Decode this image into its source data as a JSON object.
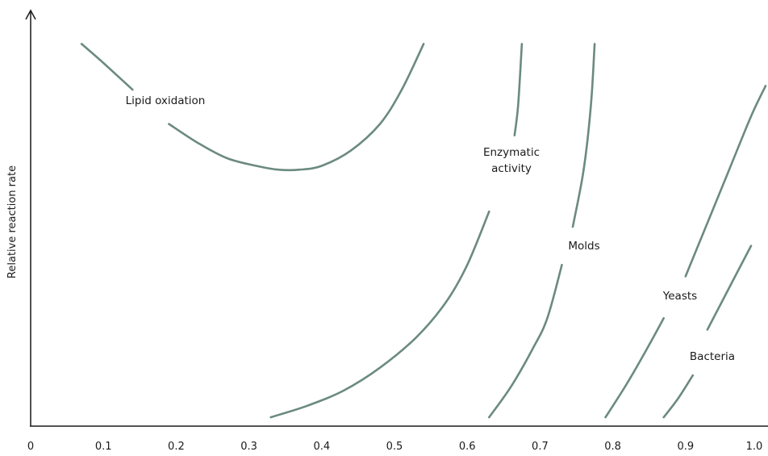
{
  "chart_data": {
    "type": "line",
    "title": "",
    "xlabel": "",
    "ylabel": "Relative reaction rate",
    "xlim": [
      0,
      1.0
    ],
    "x_ticks": [
      "0",
      "0.1",
      "0.2",
      "0.3",
      "0.4",
      "0.5",
      "0.6",
      "0.7",
      "0.8",
      "0.9",
      "1.0"
    ],
    "y_ticks": [],
    "y_units": "relative (unlabeled axis)",
    "grid": false,
    "legend": "none (curves labeled inline)",
    "curve_color": "#6b8a80",
    "series": [
      {
        "name": "Lipid oxidation",
        "label_lines": [
          "Lipid oxidation"
        ],
        "segments": [
          [
            [
              0.07,
              0.98
            ],
            [
              0.1,
              0.93
            ],
            [
              0.14,
              0.86
            ]
          ],
          [
            [
              0.19,
              0.77
            ],
            [
              0.23,
              0.72
            ],
            [
              0.27,
              0.68
            ],
            [
              0.31,
              0.66
            ],
            [
              0.34,
              0.65
            ],
            [
              0.37,
              0.65
            ],
            [
              0.4,
              0.66
            ],
            [
              0.44,
              0.7
            ],
            [
              0.48,
              0.77
            ],
            [
              0.51,
              0.86
            ],
            [
              0.54,
              0.98
            ]
          ]
        ]
      },
      {
        "name": "Enzymatic activity",
        "label_lines": [
          "Enzymatic",
          "activity"
        ],
        "segments": [
          [
            [
              0.33,
              0.0
            ],
            [
              0.38,
              0.03
            ],
            [
              0.43,
              0.07
            ],
            [
              0.48,
              0.13
            ],
            [
              0.53,
              0.21
            ],
            [
              0.57,
              0.3
            ],
            [
              0.6,
              0.4
            ],
            [
              0.63,
              0.54
            ]
          ],
          [
            [
              0.665,
              0.74
            ],
            [
              0.67,
              0.82
            ],
            [
              0.675,
              0.98
            ]
          ]
        ]
      },
      {
        "name": "Molds",
        "label_lines": [
          "Molds"
        ],
        "segments": [
          [
            [
              0.63,
              0.0
            ],
            [
              0.66,
              0.08
            ],
            [
              0.69,
              0.18
            ],
            [
              0.71,
              0.26
            ],
            [
              0.73,
              0.4
            ]
          ],
          [
            [
              0.745,
              0.5
            ],
            [
              0.76,
              0.65
            ],
            [
              0.77,
              0.82
            ],
            [
              0.775,
              0.98
            ]
          ]
        ]
      },
      {
        "name": "Yeasts",
        "label_lines": [
          "Yeasts"
        ],
        "segments": [
          [
            [
              0.79,
              0.0
            ],
            [
              0.82,
              0.09
            ],
            [
              0.85,
              0.19
            ],
            [
              0.87,
              0.26
            ]
          ],
          [
            [
              0.9,
              0.37
            ],
            [
              0.93,
              0.51
            ],
            [
              0.96,
              0.65
            ],
            [
              0.99,
              0.79
            ],
            [
              1.01,
              0.87
            ]
          ]
        ]
      },
      {
        "name": "Bacteria",
        "label_lines": [
          "Bacteria"
        ],
        "segments": [
          [
            [
              0.87,
              0.0
            ],
            [
              0.89,
              0.05
            ],
            [
              0.91,
              0.11
            ]
          ],
          [
            [
              0.93,
              0.23
            ],
            [
              0.96,
              0.34
            ],
            [
              0.99,
              0.45
            ]
          ]
        ]
      }
    ]
  }
}
